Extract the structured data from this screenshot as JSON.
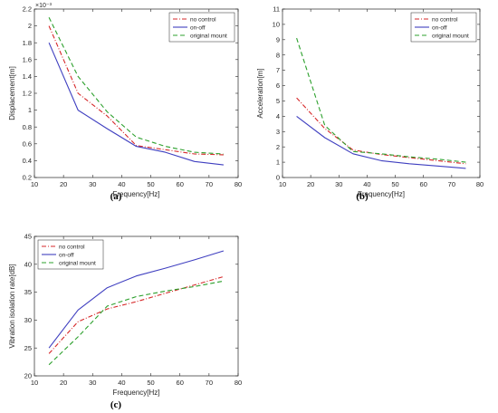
{
  "chart_data": [
    {
      "type": "line",
      "panel_label": "(a)",
      "xlabel": "Frequency[Hz]",
      "ylabel": "Displacement[m]",
      "exponent_label": "×10⁻³",
      "xlim": [
        10,
        80
      ],
      "ylim": [
        0.2,
        2.2
      ],
      "xticks": [
        10,
        20,
        30,
        40,
        50,
        60,
        70,
        80
      ],
      "yticks": [
        0.2,
        0.4,
        0.6,
        0.8,
        1,
        1.2,
        1.4,
        1.6,
        1.8,
        2,
        2.2
      ],
      "ytick_labels": [
        "0.2",
        "0.4",
        "0.6",
        "0.8",
        "1",
        "1.2",
        "1.4",
        "1.6",
        "1.8",
        "2",
        "2.2"
      ],
      "legend_position": "top-right",
      "grid": false,
      "x": [
        15,
        25,
        35,
        45,
        55,
        65,
        75
      ],
      "series": [
        {
          "name": "no control",
          "color": "#d62728",
          "dash": "dashdot",
          "values": [
            2.0,
            1.2,
            0.93,
            0.58,
            0.53,
            0.48,
            0.47
          ]
        },
        {
          "name": "on-off",
          "color": "#3f3fc0",
          "dash": "solid",
          "values": [
            1.8,
            1.0,
            0.78,
            0.57,
            0.5,
            0.39,
            0.35
          ]
        },
        {
          "name": "original mount",
          "color": "#2ca02c",
          "dash": "dashed",
          "values": [
            2.1,
            1.4,
            0.98,
            0.68,
            0.57,
            0.5,
            0.48
          ]
        }
      ]
    },
    {
      "type": "line",
      "panel_label": "(b)",
      "xlabel": "Frequency[Hz]",
      "ylabel": "Acceleration[m]",
      "xlim": [
        10,
        80
      ],
      "ylim": [
        0,
        11
      ],
      "xticks": [
        10,
        20,
        30,
        40,
        50,
        60,
        70,
        80
      ],
      "yticks": [
        0,
        1,
        2,
        3,
        4,
        5,
        6,
        7,
        8,
        9,
        10,
        11
      ],
      "ytick_labels": [
        "0",
        "1",
        "2",
        "3",
        "4",
        "5",
        "6",
        "7",
        "8",
        "9",
        "10",
        "11"
      ],
      "legend_position": "top-right",
      "grid": false,
      "x": [
        15,
        25,
        35,
        45,
        55,
        65,
        75
      ],
      "series": [
        {
          "name": "no control",
          "color": "#d62728",
          "dash": "dashdot",
          "values": [
            5.2,
            3.2,
            1.8,
            1.5,
            1.3,
            1.1,
            0.9
          ]
        },
        {
          "name": "on-off",
          "color": "#3f3fc0",
          "dash": "solid",
          "values": [
            4.0,
            2.6,
            1.55,
            1.1,
            0.9,
            0.75,
            0.6
          ]
        },
        {
          "name": "original mount",
          "color": "#2ca02c",
          "dash": "dashed",
          "values": [
            9.1,
            3.4,
            1.7,
            1.55,
            1.35,
            1.2,
            1.0
          ]
        }
      ]
    },
    {
      "type": "line",
      "panel_label": "(c)",
      "xlabel": "Frequency[Hz]",
      "ylabel": "Vibration isolation rate[dB]",
      "xlim": [
        10,
        80
      ],
      "ylim": [
        20,
        45
      ],
      "xticks": [
        10,
        20,
        30,
        40,
        50,
        60,
        70,
        80
      ],
      "yticks": [
        20,
        25,
        30,
        35,
        40,
        45
      ],
      "ytick_labels": [
        "20",
        "25",
        "30",
        "35",
        "40",
        "45"
      ],
      "legend_position": "top-left",
      "grid": false,
      "x": [
        15,
        25,
        35,
        45,
        55,
        65,
        75
      ],
      "series": [
        {
          "name": "no control",
          "color": "#d62728",
          "dash": "dashdot",
          "values": [
            24.0,
            29.7,
            32.0,
            33.3,
            34.8,
            36.3,
            37.8
          ]
        },
        {
          "name": "on-off",
          "color": "#3f3fc0",
          "dash": "solid",
          "values": [
            25.0,
            31.8,
            35.8,
            37.9,
            39.3,
            40.8,
            42.4
          ]
        },
        {
          "name": "original mount",
          "color": "#2ca02c",
          "dash": "dashed",
          "values": [
            22.0,
            27.0,
            32.5,
            34.2,
            35.2,
            36.0,
            37.0
          ]
        }
      ]
    }
  ]
}
